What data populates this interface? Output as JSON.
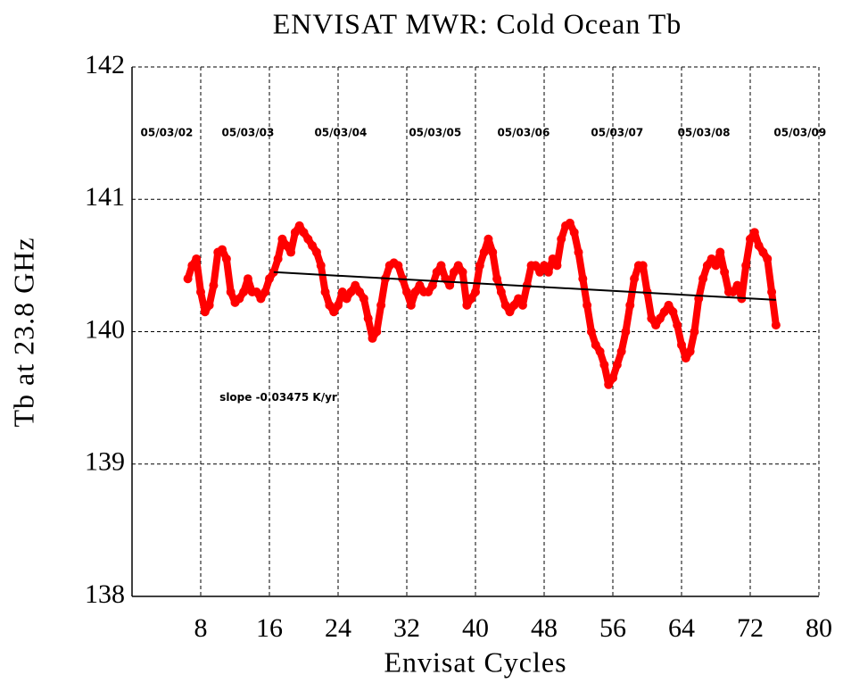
{
  "chart_data": {
    "type": "scatter",
    "title": "ENVISAT MWR: Cold Ocean Tb",
    "x_label": "Envisat Cycles",
    "y_label": "Tb at 23.8 GHz",
    "xlim": [
      0,
      80
    ],
    "xticks": [
      8,
      16,
      24,
      32,
      40,
      48,
      56,
      64,
      72,
      80
    ],
    "ylim": [
      138,
      142
    ],
    "yticks": [
      138,
      139,
      140,
      141,
      142
    ],
    "grid": true,
    "series": [
      {
        "color": "#ff0000",
        "x": [
          6.5,
          7,
          7.5,
          8,
          8.5,
          9,
          9.5,
          10,
          10.5,
          11,
          11.5,
          12,
          12.5,
          13,
          13.5,
          14,
          14.5,
          15,
          15.5,
          16,
          16.5,
          17,
          17.5,
          18,
          18.5,
          19,
          19.5,
          20,
          20.5,
          21,
          21.5,
          22,
          22.5,
          23,
          23.5,
          24,
          24.5,
          25,
          25.5,
          26,
          26.5,
          27,
          27.5,
          28,
          28.5,
          29,
          29.5,
          30,
          30.5,
          31,
          31.5,
          32,
          32.5,
          33,
          33.5,
          34,
          34.5,
          35,
          35.5,
          36,
          36.5,
          37,
          37.5,
          38,
          38.5,
          39,
          39.5,
          40,
          40.5,
          41,
          41.5,
          42,
          42.5,
          43,
          43.5,
          44,
          44.5,
          45,
          45.5,
          46,
          46.5,
          47,
          47.5,
          48,
          48.5,
          49,
          49.5,
          50,
          50.5,
          51,
          51.5,
          52,
          52.5,
          53,
          53.5,
          54,
          54.5,
          55,
          55.5,
          56,
          56.5,
          57,
          57.5,
          58,
          58.5,
          59,
          59.5,
          60,
          60.5,
          61,
          61.5,
          62,
          62.5,
          63,
          63.5,
          64,
          64.5,
          65,
          65.5,
          66,
          66.5,
          67,
          67.5,
          68,
          68.5,
          69,
          69.5,
          70,
          70.5,
          71,
          71.5,
          72,
          72.5,
          73,
          73.5,
          74,
          74.5,
          75
        ],
        "values": [
          140.4,
          140.5,
          140.55,
          140.3,
          140.15,
          140.2,
          140.35,
          140.6,
          140.62,
          140.55,
          140.3,
          140.22,
          140.25,
          140.3,
          140.4,
          140.3,
          140.3,
          140.25,
          140.3,
          140.4,
          140.45,
          140.55,
          140.7,
          140.65,
          140.6,
          140.75,
          140.8,
          140.75,
          140.7,
          140.65,
          140.6,
          140.5,
          140.3,
          140.2,
          140.15,
          140.2,
          140.3,
          140.25,
          140.3,
          140.35,
          140.3,
          140.25,
          140.1,
          139.95,
          140.0,
          140.2,
          140.4,
          140.5,
          140.52,
          140.5,
          140.4,
          140.3,
          140.2,
          140.3,
          140.35,
          140.3,
          140.3,
          140.35,
          140.45,
          140.5,
          140.4,
          140.35,
          140.45,
          140.5,
          140.45,
          140.2,
          140.25,
          140.3,
          140.5,
          140.6,
          140.7,
          140.6,
          140.4,
          140.3,
          140.2,
          140.15,
          140.2,
          140.25,
          140.2,
          140.35,
          140.5,
          140.5,
          140.45,
          140.5,
          140.45,
          140.55,
          140.5,
          140.7,
          140.8,
          140.82,
          140.75,
          140.6,
          140.4,
          140.2,
          140.0,
          139.9,
          139.85,
          139.75,
          139.6,
          139.65,
          139.75,
          139.85,
          140.0,
          140.2,
          140.4,
          140.5,
          140.5,
          140.3,
          140.1,
          140.05,
          140.1,
          140.15,
          140.2,
          140.15,
          140.05,
          139.9,
          139.8,
          139.85,
          140.0,
          140.25,
          140.4,
          140.5,
          140.55,
          140.5,
          140.6,
          140.45,
          140.3,
          140.3,
          140.35,
          140.25,
          140.5,
          140.7,
          140.75,
          140.65,
          140.6,
          140.55,
          140.3,
          140.05
        ]
      },
      {
        "color": "#000000",
        "style": "line",
        "x": [
          16.5,
          75
        ],
        "values": [
          140.45,
          140.24
        ]
      }
    ],
    "annotations": [
      {
        "text": "05/03/02",
        "x": 4.05,
        "y": 141.5
      },
      {
        "text": "05/03/03",
        "x": 13.5,
        "y": 141.5
      },
      {
        "text": "05/03/04",
        "x": 24.3,
        "y": 141.5
      },
      {
        "text": "05/03/05",
        "x": 35.3,
        "y": 141.5
      },
      {
        "text": "05/03/06",
        "x": 45.6,
        "y": 141.5
      },
      {
        "text": "05/03/07",
        "x": 56.5,
        "y": 141.5
      },
      {
        "text": "05/03/08",
        "x": 66.6,
        "y": 141.5
      },
      {
        "text": "05/03/09",
        "x": 77.8,
        "y": 141.5
      },
      {
        "text": "slope -0.03475 K/yr",
        "x": 10.2,
        "y": 139.5
      }
    ]
  }
}
